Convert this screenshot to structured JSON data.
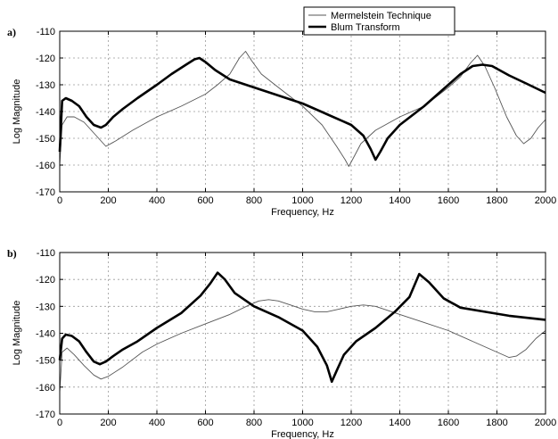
{
  "chart_data": [
    {
      "type": "line",
      "panel_label": "a)",
      "xlabel": "Frequency, Hz",
      "ylabel": "Log Magnitude",
      "xlim": [
        0,
        2000
      ],
      "ylim": [
        -170,
        -110
      ],
      "xticks": [
        0,
        200,
        400,
        600,
        800,
        1000,
        1200,
        1400,
        1600,
        1800,
        2000
      ],
      "yticks": [
        -110,
        -120,
        -130,
        -140,
        -150,
        -160,
        -170
      ],
      "grid": true,
      "legend": {
        "placement": "top-right",
        "entries": [
          "Mermelstein Technique",
          "Blum Transform"
        ]
      },
      "series": [
        {
          "name": "Mermelstein Technique",
          "style": "thin",
          "x": [
            0,
            10,
            30,
            60,
            100,
            150,
            190,
            230,
            300,
            400,
            500,
            600,
            650,
            700,
            740,
            765,
            790,
            830,
            900,
            1000,
            1080,
            1140,
            1175,
            1190,
            1205,
            1240,
            1300,
            1400,
            1500,
            1600,
            1650,
            1690,
            1720,
            1750,
            1790,
            1840,
            1880,
            1910,
            1940,
            1970,
            2000
          ],
          "y": [
            -160,
            -145,
            -142,
            -142,
            -144,
            -149,
            -153,
            -151,
            -147,
            -142,
            -138,
            -133.5,
            -130,
            -126,
            -120,
            -117.5,
            -121,
            -126,
            -131,
            -138,
            -145,
            -153,
            -158,
            -160.5,
            -158,
            -152,
            -147,
            -142,
            -138,
            -131,
            -127,
            -122,
            -119,
            -123,
            -131,
            -142,
            -149,
            -152,
            -150,
            -146,
            -143
          ]
        },
        {
          "name": "Blum Transform",
          "style": "thick",
          "x": [
            0,
            10,
            25,
            50,
            80,
            110,
            140,
            170,
            190,
            220,
            260,
            320,
            400,
            460,
            520,
            555,
            575,
            600,
            640,
            700,
            800,
            900,
            1000,
            1100,
            1200,
            1250,
            1280,
            1300,
            1320,
            1350,
            1400,
            1500,
            1600,
            1650,
            1700,
            1740,
            1780,
            1850,
            1920,
            2000
          ],
          "y": [
            -155,
            -136,
            -135,
            -136,
            -138,
            -142,
            -145,
            -146,
            -145,
            -142,
            -139,
            -135,
            -130,
            -126,
            -122.5,
            -120.5,
            -120,
            -121.5,
            -124.5,
            -128,
            -131,
            -134,
            -137,
            -141,
            -145,
            -149,
            -154,
            -158,
            -155,
            -150,
            -145,
            -138,
            -130,
            -126,
            -123,
            -122.5,
            -123,
            -126.5,
            -129.5,
            -133
          ]
        }
      ]
    },
    {
      "type": "line",
      "panel_label": "b)",
      "xlabel": "Frequency, Hz",
      "ylabel": "Log Magnitude",
      "xlim": [
        0,
        2000
      ],
      "ylim": [
        -170,
        -110
      ],
      "xticks": [
        0,
        200,
        400,
        600,
        800,
        1000,
        1200,
        1400,
        1600,
        1800,
        2000
      ],
      "yticks": [
        -110,
        -120,
        -130,
        -140,
        -150,
        -160,
        -170
      ],
      "grid": true,
      "series": [
        {
          "name": "Mermelstein Technique",
          "style": "thin",
          "x": [
            0,
            10,
            30,
            60,
            100,
            140,
            170,
            200,
            260,
            340,
            400,
            500,
            600,
            700,
            780,
            820,
            860,
            900,
            950,
            1000,
            1050,
            1100,
            1150,
            1200,
            1250,
            1300,
            1400,
            1500,
            1600,
            1700,
            1800,
            1850,
            1880,
            1920,
            1960,
            2000
          ],
          "y": [
            -162,
            -147,
            -145.5,
            -148,
            -152,
            -155.5,
            -157,
            -156,
            -152.5,
            -147,
            -144,
            -140,
            -136.5,
            -133,
            -129.5,
            -128,
            -127.5,
            -128,
            -129.5,
            -131,
            -132,
            -132,
            -131,
            -130,
            -129.5,
            -130,
            -133,
            -136,
            -139,
            -143,
            -147,
            -149,
            -148.5,
            -146,
            -142,
            -139
          ]
        },
        {
          "name": "Blum Transform",
          "style": "thick",
          "x": [
            0,
            10,
            25,
            50,
            80,
            110,
            140,
            165,
            190,
            220,
            260,
            320,
            400,
            500,
            580,
            620,
            650,
            680,
            720,
            800,
            900,
            1000,
            1060,
            1100,
            1120,
            1140,
            1170,
            1220,
            1300,
            1380,
            1440,
            1480,
            1520,
            1580,
            1650,
            1750,
            1850,
            1950,
            2000
          ],
          "y": [
            -150,
            -142,
            -140.5,
            -141,
            -143,
            -147,
            -150.5,
            -151.5,
            -150.5,
            -148.5,
            -146,
            -143,
            -138,
            -132.5,
            -126,
            -121.5,
            -117.5,
            -120,
            -125,
            -130,
            -134,
            -139,
            -145,
            -152,
            -158,
            -154,
            -148,
            -143,
            -138,
            -132,
            -126.5,
            -118,
            -121,
            -127,
            -130.5,
            -132,
            -133.5,
            -134.5,
            -135
          ]
        }
      ]
    }
  ]
}
